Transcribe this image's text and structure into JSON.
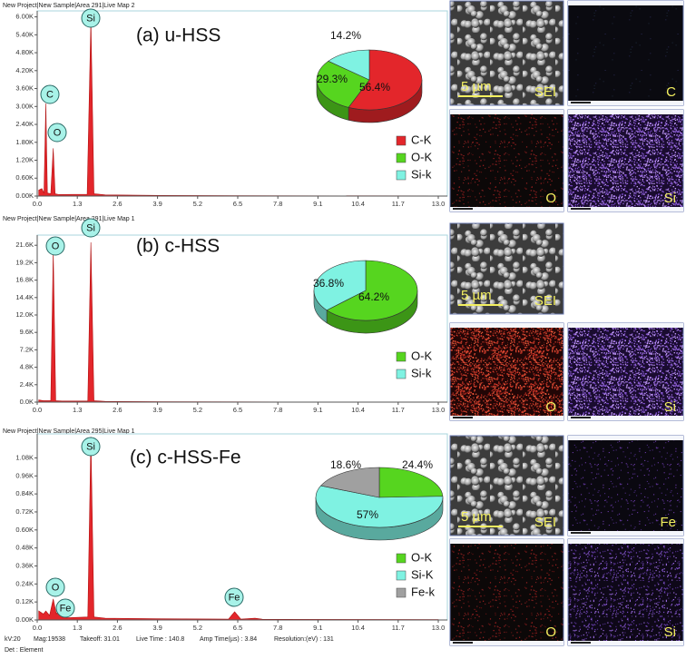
{
  "chart_data": [
    {
      "type": "area",
      "header": "New Project|New Sample|Area 291|Live Map 2",
      "title": "(a) u-HSS",
      "color": "#e3262b",
      "x": [
        0.05,
        0.15,
        0.22,
        0.28,
        0.33,
        0.44,
        0.52,
        0.58,
        0.7,
        1.62,
        1.74,
        1.84,
        2.2,
        4,
        8,
        13
      ],
      "values": [
        200,
        250,
        100,
        3100,
        100,
        80,
        1600,
        80,
        50,
        60,
        5900,
        80,
        40,
        20,
        10,
        5
      ],
      "xlim": [
        0,
        13
      ],
      "xticks": [
        {
          "value": 0,
          "label": "0.0"
        },
        1.3,
        2.6,
        3.9,
        5.2,
        6.5,
        7.8,
        9.1,
        10.4,
        11.7,
        {
          "value": 13,
          "label": "13.0"
        }
      ],
      "ylim": [
        0,
        6200
      ],
      "yticks": [
        {
          "value": 0,
          "label": "0.00K"
        },
        {
          "value": 600,
          "label": "0.60K"
        },
        {
          "value": 1200,
          "label": "1.20K"
        },
        {
          "value": 1800,
          "label": "1.80K"
        },
        {
          "value": 2400,
          "label": "2.40K"
        },
        {
          "value": 3000,
          "label": "3.00K"
        },
        {
          "value": 3600,
          "label": "3.60K"
        },
        {
          "value": 4200,
          "label": "4.20K"
        },
        {
          "value": 4800,
          "label": "4.80K"
        },
        {
          "value": 5400,
          "label": "5.40K"
        },
        {
          "value": 6000,
          "label": "6.00K"
        }
      ],
      "annotations": [
        "Si",
        "C",
        "O"
      ]
    },
    {
      "type": "pie",
      "categories": [
        "C-K",
        "O-K",
        "Si-k"
      ],
      "values": [
        56.4,
        29.3,
        14.2
      ],
      "value_labels": [
        "56.4%",
        "29.3%",
        "14.2%"
      ],
      "colors": [
        "#e3262b",
        "#56d51f",
        "#7ff2e2"
      ]
    },
    {
      "type": "area",
      "header": "New Project|New Sample|Area 291|Live Map 1",
      "title": "(b) c-HSS",
      "color": "#e3262b",
      "x": [
        0.05,
        0.2,
        0.44,
        0.52,
        0.6,
        0.8,
        1.64,
        1.74,
        1.84,
        2.2,
        4,
        8,
        13
      ],
      "values": [
        300,
        200,
        200,
        20800,
        200,
        150,
        150,
        22000,
        200,
        100,
        60,
        30,
        20
      ],
      "xlim": [
        0,
        13
      ],
      "xticks": [
        {
          "value": 0,
          "label": "0.0"
        },
        1.3,
        2.6,
        3.9,
        5.2,
        6.5,
        7.8,
        9.1,
        10.4,
        11.7,
        {
          "value": 13,
          "label": "13.0"
        }
      ],
      "ylim": [
        0,
        23000
      ],
      "yticks": [
        {
          "value": 0,
          "label": "0.0K"
        },
        {
          "value": 2400,
          "label": "2.4K"
        },
        {
          "value": 4800,
          "label": "4.8K"
        },
        {
          "value": 7200,
          "label": "7.2K"
        },
        {
          "value": 9600,
          "label": "9.6K"
        },
        {
          "value": 12000,
          "label": "12.0K"
        },
        {
          "value": 14400,
          "label": "14.4K"
        },
        {
          "value": 16800,
          "label": "16.8K"
        },
        {
          "value": 19200,
          "label": "19.2K"
        },
        {
          "value": 21600,
          "label": "21.6K"
        }
      ],
      "annotations": [
        "O",
        "Si"
      ]
    },
    {
      "type": "pie",
      "categories": [
        "O-K",
        "Si-k"
      ],
      "values": [
        64.2,
        36.8
      ],
      "value_labels": [
        "64.2%",
        "36.8%"
      ],
      "colors": [
        "#56d51f",
        "#7ff2e2"
      ]
    },
    {
      "type": "area",
      "header": "New Project|New Sample|Area 295|Live Map 1",
      "title": "(c) c-HSS-Fe",
      "color": "#e3262b",
      "x": [
        0.05,
        0.2,
        0.28,
        0.4,
        0.52,
        0.62,
        0.7,
        0.8,
        1.0,
        1.64,
        1.74,
        1.84,
        2.2,
        4,
        6.2,
        6.4,
        6.6,
        7.06,
        7.3,
        8,
        13
      ],
      "values": [
        60,
        40,
        60,
        30,
        140,
        40,
        70,
        20,
        15,
        20,
        1220,
        20,
        12,
        8,
        6,
        55,
        6,
        12,
        5,
        4,
        3
      ],
      "xlim": [
        0,
        13
      ],
      "xticks": [
        {
          "value": 0,
          "label": "0.0"
        },
        1.3,
        2.6,
        3.9,
        5.2,
        6.5,
        7.8,
        9.1,
        10.4,
        11.7,
        {
          "value": 13,
          "label": "13.0"
        }
      ],
      "ylim": [
        0,
        1240
      ],
      "yticks": [
        {
          "value": 0,
          "label": "0.00K"
        },
        {
          "value": 120,
          "label": "0.12K"
        },
        {
          "value": 240,
          "label": "0.24K"
        },
        {
          "value": 360,
          "label": "0.36K"
        },
        {
          "value": 480,
          "label": "0.48K"
        },
        {
          "value": 600,
          "label": "0.60K"
        },
        {
          "value": 720,
          "label": "0.72K"
        },
        {
          "value": 840,
          "label": "0.84K"
        },
        {
          "value": 960,
          "label": "0.96K"
        },
        {
          "value": 1080,
          "label": "1.08K"
        }
      ],
      "annotations": [
        "Si",
        "O",
        "Fe",
        "Fe"
      ]
    },
    {
      "type": "pie",
      "categories": [
        "O-K",
        "Si-K",
        "Fe-k"
      ],
      "values": [
        24.4,
        57,
        18.6
      ],
      "value_labels": [
        "24.4%",
        "57%",
        "18.6%"
      ],
      "colors": [
        "#56d51f",
        "#7ff2e2",
        "#a0a0a0"
      ]
    }
  ],
  "micrographs": [
    {
      "scale": "5 µm",
      "labels": [
        "SEI",
        "C",
        "O",
        "Si"
      ]
    },
    {
      "scale": "5 µm",
      "labels": [
        "SEI",
        "O",
        "Si"
      ]
    },
    {
      "scale": "5 µm",
      "labels": [
        "SEI",
        "Fe",
        "O",
        "Si"
      ]
    }
  ],
  "footer": [
    "kV:20",
    "Mag:19538",
    "Takeoff: 31.01",
    "Live Time : 140.8",
    "Amp Time(µs) : 3.84",
    "Resolution:(eV) : 131",
    "Det : Element"
  ]
}
